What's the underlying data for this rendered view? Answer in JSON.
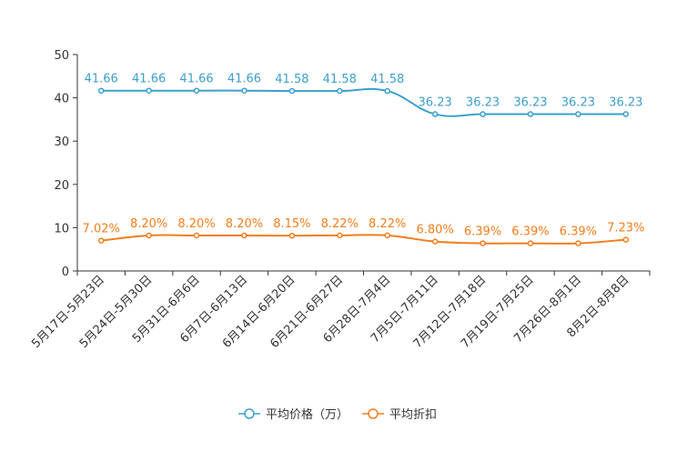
{
  "chart_data": {
    "type": "line",
    "categories": [
      "5月17日-5月23日",
      "5月24日-5月30日",
      "5月31日-6月6日",
      "6月7日-6月13日",
      "6月14日-6月20日",
      "6月21日-6月27日",
      "6月28日-7月4日",
      "7月5日-7月11日",
      "7月12日-7月18日",
      "7月19日-7月25日",
      "7月26日-8月1日",
      "8月2日-8月8日"
    ],
    "ylim": [
      0,
      50
    ],
    "yticks": [
      0,
      10,
      20,
      30,
      40,
      50
    ],
    "series": [
      {
        "name": "平均价格（万）",
        "color": "#3c9fcc",
        "values": [
          41.66,
          41.66,
          41.66,
          41.66,
          41.58,
          41.58,
          41.58,
          36.23,
          36.23,
          36.23,
          36.23,
          36.23
        ],
        "labels": [
          "41.66",
          "41.66",
          "41.66",
          "41.66",
          "41.58",
          "41.58",
          "41.58",
          "36.23",
          "36.23",
          "36.23",
          "36.23",
          "36.23"
        ]
      },
      {
        "name": "平均折扣",
        "color": "#f27d1c",
        "values": [
          7.02,
          8.2,
          8.2,
          8.2,
          8.15,
          8.22,
          8.22,
          6.8,
          6.39,
          6.39,
          6.39,
          7.23
        ],
        "labels": [
          "7.02%",
          "8.20%",
          "8.20%",
          "8.20%",
          "8.15%",
          "8.22%",
          "8.22%",
          "6.80%",
          "6.39%",
          "6.39%",
          "6.39%",
          "7.23%"
        ]
      }
    ],
    "legend_position": "bottom-center",
    "grid": false
  }
}
